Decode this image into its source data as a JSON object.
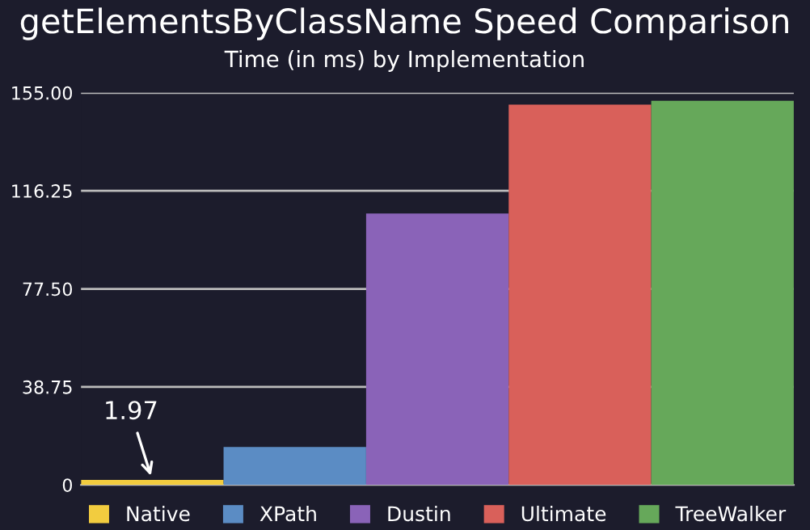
{
  "chart_data": {
    "type": "bar",
    "title": "getElementsByClassName Speed Comparison",
    "subtitle": "Time (in ms) by Implementation",
    "categories": [
      null,
      null,
      null,
      null,
      null
    ],
    "series": [
      {
        "name": "Native",
        "color": "#f2cc3f",
        "values": [
          1.97,
          null,
          null,
          null,
          null
        ],
        "value_labels": [
          "1.97",
          null,
          null,
          null,
          null
        ]
      },
      {
        "name": "XPath",
        "color": "#5b8cc4",
        "values": [
          null,
          15.0,
          null,
          null,
          null
        ]
      },
      {
        "name": "Dustin",
        "color": "#8a63b8",
        "values": [
          null,
          null,
          107.3,
          null,
          null
        ]
      },
      {
        "name": "Ultimate",
        "color": "#d9605a",
        "values": [
          null,
          null,
          null,
          150.3,
          null
        ]
      },
      {
        "name": "TreeWalker",
        "color": "#66a85a",
        "values": [
          null,
          null,
          null,
          null,
          151.8
        ]
      }
    ],
    "ylim": [
      0,
      155
    ],
    "yticks": [
      {
        "value": 0,
        "label": "0"
      },
      {
        "value": 38.75,
        "label": "38.75"
      },
      {
        "value": 77.5,
        "label": "77.50"
      },
      {
        "value": 116.25,
        "label": "116.25"
      },
      {
        "value": 155,
        "label": "155.00"
      }
    ],
    "grid": "y",
    "legend": "bottom"
  }
}
